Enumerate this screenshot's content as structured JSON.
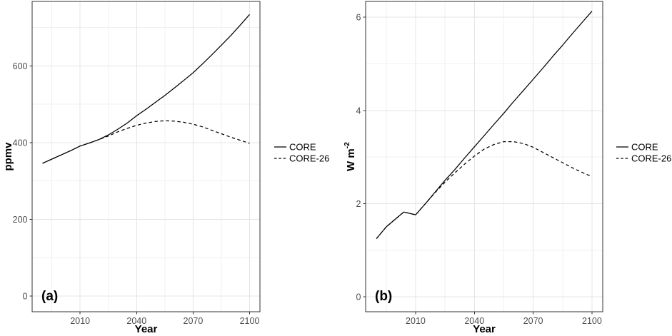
{
  "figure": {
    "background": "#ffffff",
    "legend_labels": [
      "CORE",
      "CORE-26"
    ]
  },
  "colors": {
    "line": "#000000",
    "grid_major": "#e4e4e4",
    "grid_minor": "#f1f1f1",
    "panel_border": "#333333",
    "tick_label": "#4d4d4d",
    "text": "#000000",
    "background": "#ffffff"
  },
  "chart_data": [
    {
      "type": "line",
      "panel_label": "(a)",
      "xlabel": "Year",
      "ylabel": "ppmv",
      "ylabel_sup": "",
      "xlim": [
        1984.5,
        2105.5
      ],
      "ylim": [
        -41,
        768
      ],
      "x_ticks": [
        2010,
        2040,
        2070,
        2100
      ],
      "x_minor": [
        1995,
        2025,
        2055,
        2085
      ],
      "y_ticks": [
        0,
        200,
        400,
        600
      ],
      "y_minor": [
        100,
        300,
        500,
        700
      ],
      "grid": true,
      "legend_position": "right",
      "series": [
        {
          "name": "CORE",
          "dash": "solid",
          "x": [
            1990,
            1995,
            2000,
            2005,
            2010,
            2015,
            2020,
            2025,
            2030,
            2035,
            2040,
            2045,
            2050,
            2055,
            2060,
            2065,
            2070,
            2075,
            2080,
            2085,
            2090,
            2095,
            2100
          ],
          "y": [
            346,
            357,
            368,
            379,
            391,
            399,
            408,
            420,
            435,
            451,
            470,
            487,
            505,
            523,
            542,
            562,
            582,
            605,
            629,
            654,
            679,
            706,
            734
          ]
        },
        {
          "name": "CORE-26",
          "dash": "dashed",
          "x": [
            1990,
            1995,
            2000,
            2005,
            2010,
            2015,
            2020,
            2025,
            2030,
            2035,
            2040,
            2045,
            2050,
            2055,
            2060,
            2065,
            2070,
            2075,
            2080,
            2085,
            2090,
            2095,
            2100
          ],
          "y": [
            346,
            357,
            368,
            379,
            391,
            399,
            408,
            417,
            428,
            437,
            445,
            451,
            455,
            457,
            456,
            453,
            448,
            441,
            432,
            423,
            414,
            406,
            398
          ]
        }
      ]
    },
    {
      "type": "line",
      "panel_label": "(b)",
      "xlabel": "Year",
      "ylabel": "W m",
      "ylabel_sup": "-2",
      "xlim": [
        1984.5,
        2105.5
      ],
      "ylim": [
        -0.32,
        6.34
      ],
      "x_ticks": [
        2010,
        2040,
        2070,
        2100
      ],
      "x_minor": [
        1995,
        2025,
        2055,
        2085
      ],
      "y_ticks": [
        0,
        2,
        4,
        6
      ],
      "y_minor": [
        1,
        3,
        5
      ],
      "grid": true,
      "legend_position": "right",
      "series": [
        {
          "name": "CORE",
          "dash": "solid",
          "x": [
            1990,
            1995,
            2000,
            2004,
            2010,
            2015,
            2020,
            2025,
            2030,
            2035,
            2040,
            2045,
            2050,
            2055,
            2060,
            2065,
            2070,
            2075,
            2080,
            2085,
            2090,
            2095,
            2100
          ],
          "y": [
            1.25,
            1.5,
            1.68,
            1.82,
            1.76,
            2.0,
            2.25,
            2.5,
            2.73,
            2.98,
            3.22,
            3.46,
            3.7,
            3.94,
            4.19,
            4.43,
            4.67,
            4.91,
            5.16,
            5.4,
            5.65,
            5.89,
            6.13
          ]
        },
        {
          "name": "CORE-26",
          "dash": "dashed",
          "x": [
            1990,
            1995,
            2000,
            2004,
            2010,
            2015,
            2020,
            2025,
            2030,
            2035,
            2040,
            2045,
            2050,
            2055,
            2060,
            2065,
            2070,
            2075,
            2080,
            2085,
            2090,
            2095,
            2100
          ],
          "y": [
            1.25,
            1.5,
            1.68,
            1.82,
            1.76,
            2.0,
            2.24,
            2.46,
            2.66,
            2.85,
            3.02,
            3.17,
            3.27,
            3.33,
            3.33,
            3.29,
            3.21,
            3.1,
            2.99,
            2.88,
            2.77,
            2.67,
            2.58
          ]
        }
      ]
    }
  ]
}
